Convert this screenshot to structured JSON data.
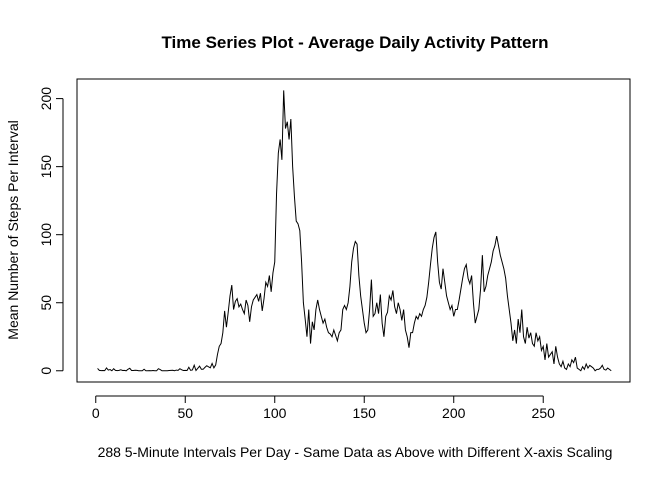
{
  "chart_data": {
    "type": "line",
    "title": "Time Series Plot - Average Daily Activity Pattern",
    "x_label": "288 5-Minute Intervals Per Day - Same Data as Above with Different X-axis Scaling",
    "y_label": "Mean Number of Steps Per Interval",
    "x": [
      1,
      2,
      3,
      4,
      5,
      6,
      7,
      8,
      9,
      10,
      11,
      12,
      13,
      14,
      15,
      16,
      17,
      18,
      19,
      20,
      21,
      22,
      23,
      24,
      25,
      26,
      27,
      28,
      29,
      30,
      31,
      32,
      33,
      34,
      35,
      36,
      37,
      38,
      39,
      40,
      41,
      42,
      43,
      44,
      45,
      46,
      47,
      48,
      49,
      50,
      51,
      52,
      53,
      54,
      55,
      56,
      57,
      58,
      59,
      60,
      61,
      62,
      63,
      64,
      65,
      66,
      67,
      68,
      69,
      70,
      71,
      72,
      73,
      74,
      75,
      76,
      77,
      78,
      79,
      80,
      81,
      82,
      83,
      84,
      85,
      86,
      87,
      88,
      89,
      90,
      91,
      92,
      93,
      94,
      95,
      96,
      97,
      98,
      99,
      100,
      101,
      102,
      103,
      104,
      105,
      106,
      107,
      108,
      109,
      110,
      111,
      112,
      113,
      114,
      115,
      116,
      117,
      118,
      119,
      120,
      121,
      122,
      123,
      124,
      125,
      126,
      127,
      128,
      129,
      130,
      131,
      132,
      133,
      134,
      135,
      136,
      137,
      138,
      139,
      140,
      141,
      142,
      143,
      144,
      145,
      146,
      147,
      148,
      149,
      150,
      151,
      152,
      153,
      154,
      155,
      156,
      157,
      158,
      159,
      160,
      161,
      162,
      163,
      164,
      165,
      166,
      167,
      168,
      169,
      170,
      171,
      172,
      173,
      174,
      175,
      176,
      177,
      178,
      179,
      180,
      181,
      182,
      183,
      184,
      185,
      186,
      187,
      188,
      189,
      190,
      191,
      192,
      193,
      194,
      195,
      196,
      197,
      198,
      199,
      200,
      201,
      202,
      203,
      204,
      205,
      206,
      207,
      208,
      209,
      210,
      211,
      212,
      213,
      214,
      215,
      216,
      217,
      218,
      219,
      220,
      221,
      222,
      223,
      224,
      225,
      226,
      227,
      228,
      229,
      230,
      231,
      232,
      233,
      234,
      235,
      236,
      237,
      238,
      239,
      240,
      241,
      242,
      243,
      244,
      245,
      246,
      247,
      248,
      249,
      250,
      251,
      252,
      253,
      254,
      255,
      256,
      257,
      258,
      259,
      260,
      261,
      262,
      263,
      264,
      265,
      266,
      267,
      268,
      269,
      270,
      271,
      272,
      273,
      274,
      275,
      276,
      277,
      278,
      279,
      280,
      281,
      282,
      283,
      284,
      285,
      286,
      287,
      288
    ],
    "series": [
      {
        "color": "#000000",
        "values": [
          1.7,
          0.3,
          0.1,
          0.2,
          0.1,
          2.1,
          0.5,
          0.9,
          0,
          1.5,
          0.3,
          0.1,
          0.3,
          0.7,
          0.2,
          0.3,
          0,
          1.1,
          1.8,
          0.2,
          0.2,
          0.4,
          0.3,
          0,
          0,
          0,
          1.1,
          0,
          0,
          0.1,
          0,
          0.2,
          0,
          0,
          1.5,
          0.9,
          0,
          0,
          0,
          0,
          0.2,
          0.3,
          0.4,
          0,
          0.5,
          0.3,
          1.5,
          0.7,
          0.2,
          0.3,
          0.2,
          2.6,
          0.3,
          0.6,
          4.1,
          0.2,
          1.8,
          3.4,
          1.1,
          1.1,
          2.5,
          3.7,
          2.9,
          2.2,
          5.4,
          2.1,
          4.3,
          12,
          18,
          20,
          28,
          44,
          32,
          43,
          55,
          63,
          45,
          51,
          53,
          47,
          49,
          45,
          42,
          52,
          48,
          36,
          47,
          52,
          54,
          56,
          51,
          57,
          44,
          53,
          65,
          62,
          70,
          58,
          72,
          80,
          130,
          160,
          170,
          155,
          206,
          178,
          183,
          170,
          185,
          150,
          128,
          110,
          108,
          103,
          80,
          50,
          38,
          25,
          45,
          20,
          36,
          30,
          45,
          52,
          45,
          40,
          35,
          38,
          32,
          28,
          27,
          25,
          30,
          26,
          22,
          28,
          30,
          45,
          48,
          45,
          50,
          62,
          80,
          90,
          95,
          93,
          70,
          55,
          45,
          35,
          28,
          30,
          45,
          67,
          40,
          42,
          50,
          42,
          56,
          35,
          25,
          40,
          43,
          55,
          52,
          59,
          47,
          42,
          50,
          45,
          37,
          45,
          30,
          25,
          17,
          28,
          28,
          35,
          40,
          38,
          42,
          40,
          45,
          48,
          54,
          65,
          78,
          90,
          98,
          102,
          80,
          65,
          60,
          75,
          65,
          55,
          50,
          45,
          48,
          40,
          45,
          45,
          52,
          60,
          68,
          75,
          78,
          68,
          64,
          70,
          50,
          35,
          40,
          45,
          60,
          85,
          58,
          62,
          70,
          75,
          80,
          88,
          92,
          99,
          92,
          85,
          80,
          75,
          68,
          55,
          45,
          35,
          22,
          30,
          20,
          38,
          28,
          45,
          25,
          20,
          32,
          24,
          28,
          20,
          18,
          28,
          22,
          25,
          15,
          18,
          8,
          20,
          10,
          12,
          14,
          5,
          18,
          10,
          5,
          3,
          7,
          2,
          1,
          5,
          3,
          8,
          6,
          10,
          2,
          1,
          0,
          3,
          1,
          5,
          2,
          4,
          3,
          2,
          0,
          1,
          1,
          2,
          4,
          1,
          0.5,
          2,
          1,
          0
        ]
      }
    ],
    "xlim": [
      -10.48,
      298.48
    ],
    "ylim": [
      -8.25,
      214.4
    ],
    "xticks": [
      0,
      50,
      100,
      150,
      200,
      250
    ],
    "yticks": [
      0,
      50,
      100,
      150,
      200
    ]
  }
}
